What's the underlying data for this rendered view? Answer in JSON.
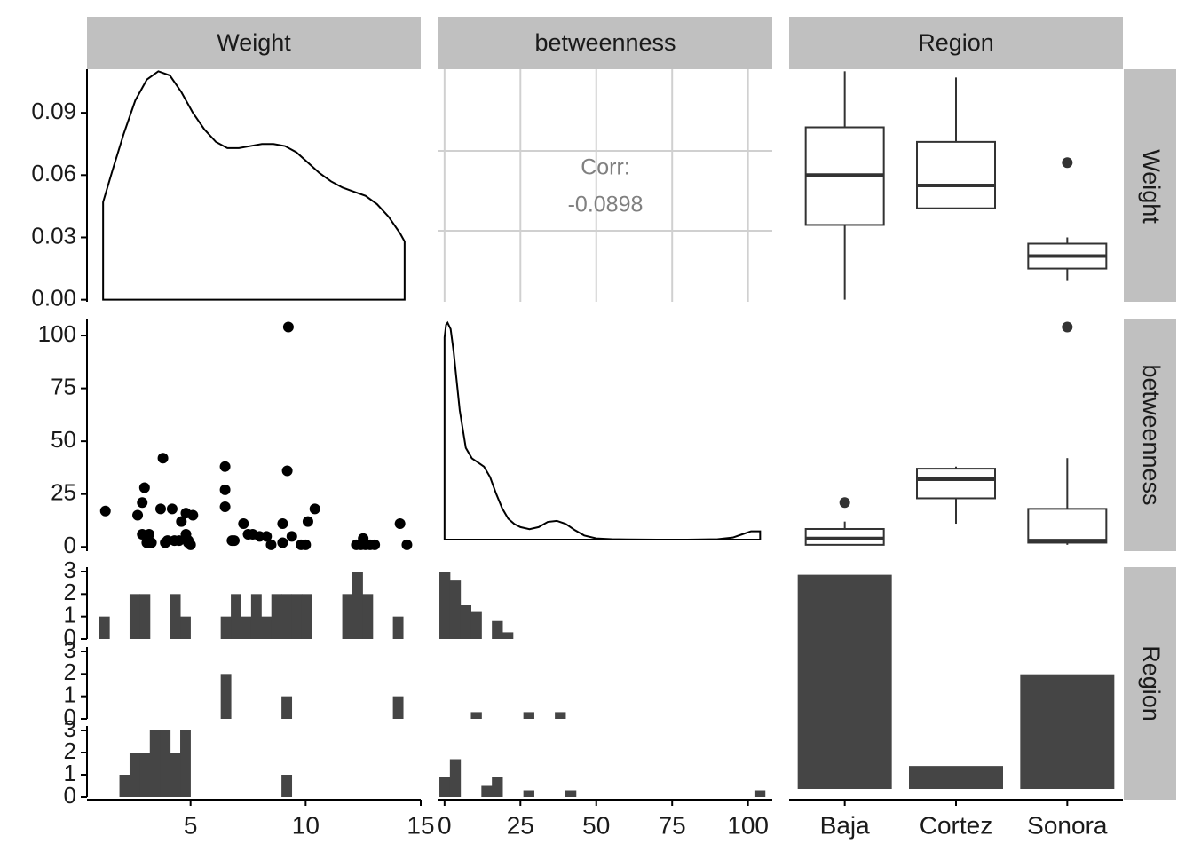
{
  "chart_data": {
    "type": "scatter-matrix",
    "variables": [
      "Weight",
      "betweenness",
      "Region"
    ],
    "row_strips": [
      "Weight",
      "betweenness",
      "Region"
    ],
    "col_strips": [
      "Weight",
      "betweenness",
      "Region"
    ],
    "axes": {
      "weight_x": {
        "range": [
          0.5,
          15
        ],
        "ticks": [
          5,
          10,
          15
        ]
      },
      "betweenness_x": {
        "range": [
          -2,
          108
        ],
        "ticks": [
          0,
          25,
          50,
          75,
          100
        ]
      },
      "region_x": {
        "categories": [
          "Baja",
          "Cortez",
          "Sonora"
        ]
      },
      "density_y": {
        "range": [
          -0.001,
          0.111
        ],
        "ticks": [
          "0.00",
          "0.03",
          "0.06",
          "0.09"
        ]
      },
      "betweenness_y": {
        "range": [
          -2,
          108
        ],
        "ticks": [
          "0",
          "25",
          "50",
          "75",
          "100"
        ]
      },
      "count_y": {
        "ticks": [
          "0",
          "1",
          "2",
          "3"
        ]
      }
    },
    "weight_density": {
      "x": [
        1.2,
        1.6,
        2.1,
        2.6,
        3.1,
        3.6,
        4.1,
        4.6,
        5.1,
        5.6,
        6.1,
        6.6,
        7.1,
        7.6,
        8.1,
        8.6,
        9.1,
        9.6,
        10.1,
        10.6,
        11.1,
        11.6,
        12.1,
        12.6,
        13.1,
        13.6,
        14.1,
        14.3
      ],
      "y": [
        0.047,
        0.062,
        0.08,
        0.096,
        0.106,
        0.11,
        0.108,
        0.1,
        0.09,
        0.082,
        0.076,
        0.073,
        0.073,
        0.074,
        0.075,
        0.075,
        0.074,
        0.071,
        0.066,
        0.061,
        0.057,
        0.054,
        0.052,
        0.05,
        0.046,
        0.04,
        0.032,
        0.028
      ]
    },
    "correlation": {
      "label": "Corr:",
      "value": "-0.0898"
    },
    "weight_boxplots": [
      {
        "category": "Baja",
        "lower": 0.0,
        "q1": 0.036,
        "median": 0.06,
        "q3": 0.083,
        "upper": 0.11,
        "outliers": []
      },
      {
        "category": "Cortez",
        "lower": 0.044,
        "q1": 0.044,
        "median": 0.055,
        "q3": 0.076,
        "upper": 0.107,
        "outliers": []
      },
      {
        "category": "Sonora",
        "lower": 0.009,
        "q1": 0.015,
        "median": 0.021,
        "q3": 0.027,
        "upper": 0.03,
        "outliers": [
          0.066
        ]
      }
    ],
    "scatter_points": [
      [
        1.3,
        17
      ],
      [
        2.7,
        15
      ],
      [
        2.9,
        21
      ],
      [
        3.0,
        28
      ],
      [
        2.9,
        6
      ],
      [
        3.1,
        2
      ],
      [
        3.2,
        6
      ],
      [
        3.3,
        2
      ],
      [
        3.7,
        18
      ],
      [
        3.8,
        42
      ],
      [
        3.9,
        2
      ],
      [
        4.0,
        3
      ],
      [
        4.2,
        18
      ],
      [
        4.3,
        3
      ],
      [
        4.5,
        3
      ],
      [
        4.6,
        12
      ],
      [
        4.8,
        16
      ],
      [
        4.8,
        6
      ],
      [
        4.9,
        2
      ],
      [
        5.0,
        1
      ],
      [
        5.1,
        15
      ],
      [
        4.9,
        3
      ],
      [
        6.5,
        38
      ],
      [
        6.5,
        27
      ],
      [
        6.5,
        19
      ],
      [
        6.8,
        3
      ],
      [
        6.9,
        3
      ],
      [
        7.3,
        11
      ],
      [
        7.5,
        6
      ],
      [
        7.7,
        6
      ],
      [
        8.0,
        5
      ],
      [
        8.3,
        5
      ],
      [
        8.5,
        1
      ],
      [
        9.0,
        11
      ],
      [
        9.0,
        2
      ],
      [
        9.2,
        36
      ],
      [
        9.25,
        104
      ],
      [
        9.4,
        5
      ],
      [
        9.8,
        1
      ],
      [
        10.0,
        1
      ],
      [
        10.1,
        12
      ],
      [
        10.4,
        18
      ],
      [
        12.2,
        1
      ],
      [
        12.4,
        1
      ],
      [
        12.5,
        4
      ],
      [
        12.6,
        1
      ],
      [
        12.8,
        1
      ],
      [
        13.0,
        1
      ],
      [
        14.1,
        11
      ],
      [
        14.4,
        1
      ]
    ],
    "betweenness_density": {
      "x": [
        0,
        0.5,
        1,
        2,
        3,
        4,
        5,
        7,
        9,
        11,
        13,
        15,
        17,
        19,
        21,
        23,
        25,
        28,
        31,
        34,
        37,
        40,
        43,
        46,
        50,
        55,
        60,
        70,
        80,
        90,
        95,
        98,
        101,
        104
      ],
      "y": [
        0.97,
        1.03,
        1.04,
        1.01,
        0.9,
        0.76,
        0.62,
        0.44,
        0.39,
        0.37,
        0.35,
        0.3,
        0.22,
        0.15,
        0.1,
        0.075,
        0.06,
        0.05,
        0.06,
        0.085,
        0.09,
        0.075,
        0.045,
        0.02,
        0.006,
        0.002,
        0.001,
        0.0,
        0.0,
        0.002,
        0.01,
        0.025,
        0.04,
        0.04
      ]
    },
    "betweenness_boxplots": [
      {
        "category": "Baja",
        "lower": 1,
        "q1": 1,
        "median": 4,
        "q3": 8.5,
        "upper": 12,
        "outliers": [
          21
        ]
      },
      {
        "category": "Cortez",
        "lower": 11,
        "q1": 23,
        "median": 32,
        "q3": 37,
        "upper": 38,
        "outliers": []
      },
      {
        "category": "Sonora",
        "lower": 1,
        "q1": 2,
        "median": 3,
        "q3": 18,
        "upper": 42,
        "outliers": [
          104
        ]
      }
    ],
    "weight_histograms": {
      "bin_edges": [
        1.03,
        1.47,
        1.91,
        2.35,
        2.79,
        3.23,
        3.67,
        4.11,
        4.55,
        4.99,
        5.43,
        5.87,
        6.31,
        6.75,
        7.19,
        7.63,
        8.07,
        8.51,
        8.95,
        9.39,
        9.83,
        10.27,
        10.71,
        11.15,
        11.59,
        12.03,
        12.47,
        12.91,
        13.35,
        13.79,
        14.23
      ],
      "Baja": [
        1,
        0,
        0,
        2,
        2,
        0,
        0,
        2,
        1,
        0,
        0,
        0,
        1,
        2,
        1,
        2,
        1,
        2,
        2,
        2,
        2,
        0,
        0,
        0,
        2,
        3,
        2,
        0,
        0,
        1
      ],
      "Cortez": [
        0,
        0,
        0,
        0,
        0,
        0,
        0,
        0,
        0,
        0,
        0,
        0,
        2,
        0,
        0,
        0,
        0,
        0,
        1,
        0,
        0,
        0,
        0,
        0,
        0,
        0,
        0,
        0,
        0,
        1
      ],
      "Sonora": [
        0,
        0,
        1,
        2,
        2,
        3,
        3,
        2,
        3,
        0,
        0,
        0,
        0,
        0,
        0,
        0,
        0,
        0,
        1,
        0,
        0,
        0,
        0,
        0,
        0,
        0,
        0,
        0,
        0,
        0
      ]
    },
    "betweenness_histograms": {
      "bin_edges": [
        -1.7,
        1.76,
        5.22,
        8.68,
        12.14,
        15.6,
        19.06,
        22.52,
        25.98,
        29.44,
        32.9,
        36.36,
        39.82,
        43.28,
        46.74,
        50.2,
        53.66,
        57.12,
        60.58,
        64.04,
        67.5,
        70.98,
        74.44,
        77.9,
        81.36,
        84.82,
        88.28,
        91.74,
        95.2,
        98.66,
        102.12,
        105.58
      ],
      "Baja": [
        3,
        2.6,
        1.5,
        1.2,
        0,
        0.8,
        0.3,
        0,
        0,
        0,
        0,
        0,
        0,
        0,
        0,
        0,
        0,
        0,
        0,
        0,
        0,
        0,
        0,
        0,
        0,
        0,
        0,
        0,
        0,
        0,
        0
      ],
      "Cortez": [
        0,
        0,
        0,
        0.3,
        0,
        0,
        0,
        0,
        0.3,
        0,
        0,
        0.3,
        0,
        0,
        0,
        0,
        0,
        0,
        0,
        0,
        0,
        0,
        0,
        0,
        0,
        0,
        0,
        0,
        0,
        0,
        0
      ],
      "Sonora": [
        0.9,
        1.7,
        0,
        0,
        0.5,
        0.9,
        0,
        0,
        0.3,
        0,
        0,
        0,
        0.3,
        0,
        0,
        0,
        0,
        0,
        0,
        0,
        0,
        0,
        0,
        0,
        0,
        0,
        0,
        0,
        0,
        0,
        0.3
      ]
    },
    "region_counts": {
      "categories": [
        "Baja",
        "Cortez",
        "Sonora"
      ],
      "values": [
        28,
        3,
        15
      ]
    }
  }
}
